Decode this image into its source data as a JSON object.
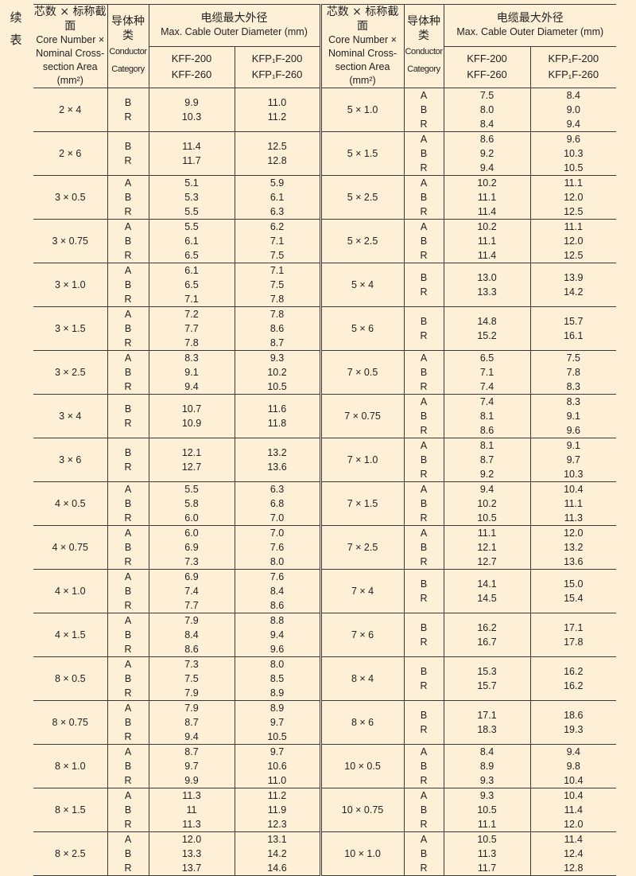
{
  "side_label": "续表",
  "header": {
    "size_zh": "芯数 × 标称截面",
    "size_en": [
      "Core Number ×",
      "Nominal Cross-",
      "section Area",
      "(mm²)"
    ],
    "cat_zh": "导体种类",
    "cat_en": [
      "Conductor",
      "Category"
    ],
    "diam_zh": "电缆最大外径",
    "diam_en": "Max. Cable Outer Diameter (mm)",
    "model1": [
      "KFF-200",
      "KFF-260"
    ],
    "model2": [
      "KFP₁F-200",
      "KFP₁F-260"
    ]
  },
  "left": [
    {
      "size": "2 × 4",
      "cat": [
        "B",
        "R"
      ],
      "kff": [
        "9.9",
        "10.3"
      ],
      "kfp": [
        "11.0",
        "11.2"
      ]
    },
    {
      "size": "2 × 6",
      "cat": [
        "B",
        "R"
      ],
      "kff": [
        "11.4",
        "11.7"
      ],
      "kfp": [
        "12.5",
        "12.8"
      ]
    },
    {
      "size": "3 × 0.5",
      "cat": [
        "A",
        "B",
        "R"
      ],
      "kff": [
        "5.1",
        "5.3",
        "5.5"
      ],
      "kfp": [
        "5.9",
        "6.1",
        "6.3"
      ]
    },
    {
      "size": "3 × 0.75",
      "cat": [
        "A",
        "B",
        "R"
      ],
      "kff": [
        "5.5",
        "6.1",
        "6.5"
      ],
      "kfp": [
        "6.2",
        "7.1",
        "7.5"
      ]
    },
    {
      "size": "3 × 1.0",
      "cat": [
        "A",
        "B",
        "R"
      ],
      "kff": [
        "6.1",
        "6.5",
        "7.1"
      ],
      "kfp": [
        "7.1",
        "7.5",
        "7.8"
      ]
    },
    {
      "size": "3 × 1.5",
      "cat": [
        "A",
        "B",
        "R"
      ],
      "kff": [
        "7.2",
        "7.7",
        "7.8"
      ],
      "kfp": [
        "7.8",
        "8.6",
        "8.7"
      ]
    },
    {
      "size": "3 × 2.5",
      "cat": [
        "A",
        "B",
        "R"
      ],
      "kff": [
        "8.3",
        "9.1",
        "9.4"
      ],
      "kfp": [
        "9.3",
        "10.2",
        "10.5"
      ]
    },
    {
      "size": "3 × 4",
      "cat": [
        "B",
        "R"
      ],
      "kff": [
        "10.7",
        "10.9"
      ],
      "kfp": [
        "11.6",
        "11.8"
      ]
    },
    {
      "size": "3 × 6",
      "cat": [
        "B",
        "R"
      ],
      "kff": [
        "12.1",
        "12.7"
      ],
      "kfp": [
        "13.2",
        "13.6"
      ]
    },
    {
      "size": "4 × 0.5",
      "cat": [
        "A",
        "B",
        "R"
      ],
      "kff": [
        "5.5",
        "5.8",
        "6.0"
      ],
      "kfp": [
        "6.3",
        "6.8",
        "7.0"
      ]
    },
    {
      "size": "4 × 0.75",
      "cat": [
        "A",
        "B",
        "R"
      ],
      "kff": [
        "6.0",
        "6.9",
        "7.3"
      ],
      "kfp": [
        "7.0",
        "7.6",
        "8.0"
      ]
    },
    {
      "size": "4 × 1.0",
      "cat": [
        "A",
        "B",
        "R"
      ],
      "kff": [
        "6.9",
        "7.4",
        "7.7"
      ],
      "kfp": [
        "7.6",
        "8.4",
        "8.6"
      ]
    },
    {
      "size": "4 × 1.5",
      "cat": [
        "A",
        "B",
        "R"
      ],
      "kff": [
        "7.9",
        "8.4",
        "8.6"
      ],
      "kfp": [
        "8.8",
        "9.4",
        "9.6"
      ]
    },
    {
      "size": "8 × 0.5",
      "cat": [
        "A",
        "B",
        "R"
      ],
      "kff": [
        "7.3",
        "7.5",
        "7.9"
      ],
      "kfp": [
        "8.0",
        "8.5",
        "8.9"
      ]
    },
    {
      "size": "8 × 0.75",
      "cat": [
        "A",
        "B",
        "R"
      ],
      "kff": [
        "7.9",
        "8.7",
        "9.4"
      ],
      "kfp": [
        "8.9",
        "9.7",
        "10.5"
      ]
    },
    {
      "size": "8 × 1.0",
      "cat": [
        "A",
        "B",
        "R"
      ],
      "kff": [
        "8.7",
        "9.7",
        "9.9"
      ],
      "kfp": [
        "9.7",
        "10.6",
        "11.0"
      ]
    },
    {
      "size": "8 × 1.5",
      "cat": [
        "A",
        "B",
        "R"
      ],
      "kff": [
        "11.3",
        "11",
        "11.3"
      ],
      "kfp": [
        "11.2",
        "11.9",
        "12.3"
      ]
    },
    {
      "size": "8 × 2.5",
      "cat": [
        "A",
        "B",
        "R"
      ],
      "kff": [
        "12.0",
        "13.3",
        "13.7"
      ],
      "kfp": [
        "13.1",
        "14.2",
        "14.6"
      ]
    }
  ],
  "right": [
    {
      "size": "5 × 1.0",
      "cat": [
        "A",
        "B",
        "R"
      ],
      "kff": [
        "7.5",
        "8.0",
        "8.4"
      ],
      "kfp": [
        "8.4",
        "9.0",
        "9.4"
      ]
    },
    {
      "size": "5 × 1.5",
      "cat": [
        "A",
        "B",
        "R"
      ],
      "kff": [
        "8.6",
        "9.2",
        "9.4"
      ],
      "kfp": [
        "9.6",
        "10.3",
        "10.5"
      ]
    },
    {
      "size": "5 × 2.5",
      "cat": [
        "A",
        "B",
        "R"
      ],
      "kff": [
        "10.2",
        "11.1",
        "11.4"
      ],
      "kfp": [
        "11.1",
        "12.0",
        "12.5"
      ]
    },
    {
      "size": "5 × 2.5",
      "cat": [
        "A",
        "B",
        "R"
      ],
      "kff": [
        "10.2",
        "11.1",
        "11.4"
      ],
      "kfp": [
        "11.1",
        "12.0",
        "12.5"
      ]
    },
    {
      "size": "5 × 4",
      "cat": [
        "B",
        "R"
      ],
      "kff": [
        "13.0",
        "13.3"
      ],
      "kfp": [
        "13.9",
        "14.2"
      ]
    },
    {
      "size": "5 × 6",
      "cat": [
        "B",
        "R"
      ],
      "kff": [
        "14.8",
        "15.2"
      ],
      "kfp": [
        "15.7",
        "16.1"
      ]
    },
    {
      "size": "7 × 0.5",
      "cat": [
        "A",
        "B",
        "R"
      ],
      "kff": [
        "6.5",
        "7.1",
        "7.4"
      ],
      "kfp": [
        "7.5",
        "7.8",
        "8.3"
      ]
    },
    {
      "size": "7 × 0.75",
      "cat": [
        "A",
        "B",
        "R"
      ],
      "kff": [
        "7.4",
        "8.1",
        "8.6"
      ],
      "kfp": [
        "8.3",
        "9.1",
        "9.6"
      ]
    },
    {
      "size": "7 × 1.0",
      "cat": [
        "A",
        "B",
        "R"
      ],
      "kff": [
        "8.1",
        "8.7",
        "9.2"
      ],
      "kfp": [
        "9.1",
        "9.7",
        "10.3"
      ]
    },
    {
      "size": "7 × 1.5",
      "cat": [
        "A",
        "B",
        "R"
      ],
      "kff": [
        "9.4",
        "10.2",
        "10.5"
      ],
      "kfp": [
        "10.4",
        "11.1",
        "11.3"
      ]
    },
    {
      "size": "7 × 2.5",
      "cat": [
        "A",
        "B",
        "R"
      ],
      "kff": [
        "11.1",
        "12.1",
        "12.7"
      ],
      "kfp": [
        "12.0",
        "13.2",
        "13.6"
      ]
    },
    {
      "size": "7 × 4",
      "cat": [
        "B",
        "R"
      ],
      "kff": [
        "14.1",
        "14.5"
      ],
      "kfp": [
        "15.0",
        "15.4"
      ]
    },
    {
      "size": "7 × 6",
      "cat": [
        "B",
        "R"
      ],
      "kff": [
        "16.2",
        "16.7"
      ],
      "kfp": [
        "17.1",
        "17.8"
      ]
    },
    {
      "size": "8 × 4",
      "cat": [
        "B",
        "R"
      ],
      "kff": [
        "15.3",
        "15.7"
      ],
      "kfp": [
        "16.2",
        "16.2"
      ]
    },
    {
      "size": "8 × 6",
      "cat": [
        "B",
        "R"
      ],
      "kff": [
        "17.1",
        "18.3"
      ],
      "kfp": [
        "18.6",
        "19.3"
      ]
    },
    {
      "size": "10 × 0.5",
      "cat": [
        "A",
        "B",
        "R"
      ],
      "kff": [
        "8.4",
        "8.9",
        "9.3"
      ],
      "kfp": [
        "9.4",
        "9.8",
        "10.4"
      ]
    },
    {
      "size": "10 × 0.75",
      "cat": [
        "A",
        "B",
        "R"
      ],
      "kff": [
        "9.3",
        "10.5",
        "11.1"
      ],
      "kfp": [
        "10.4",
        "11.4",
        "12.0"
      ]
    },
    {
      "size": "10 × 1.0",
      "cat": [
        "A",
        "B",
        "R"
      ],
      "kff": [
        "10.5",
        "11.3",
        "11.7"
      ],
      "kfp": [
        "11.4",
        "12.4",
        "12.8"
      ]
    }
  ]
}
